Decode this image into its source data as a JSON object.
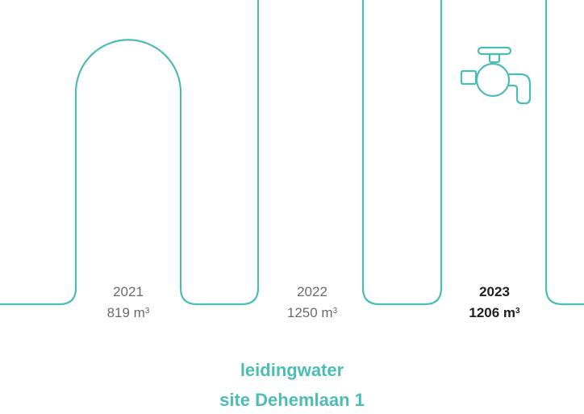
{
  "chart_data": {
    "type": "bar",
    "categories": [
      "2021",
      "2022",
      "2023"
    ],
    "values": [
      819,
      1250,
      1206
    ],
    "value_labels": [
      "819 m",
      "1250 m",
      "1206 m"
    ],
    "unit_superscript": "3",
    "highlighted_category": "2023",
    "icon": "water-tap-icon",
    "title_lines": [
      "leidingwater",
      "site Dehemlaan 1"
    ],
    "accent_color": "#4dbdb3",
    "text_color": "#6b6b6b",
    "highlight_text_color": "#1f1f1f"
  }
}
